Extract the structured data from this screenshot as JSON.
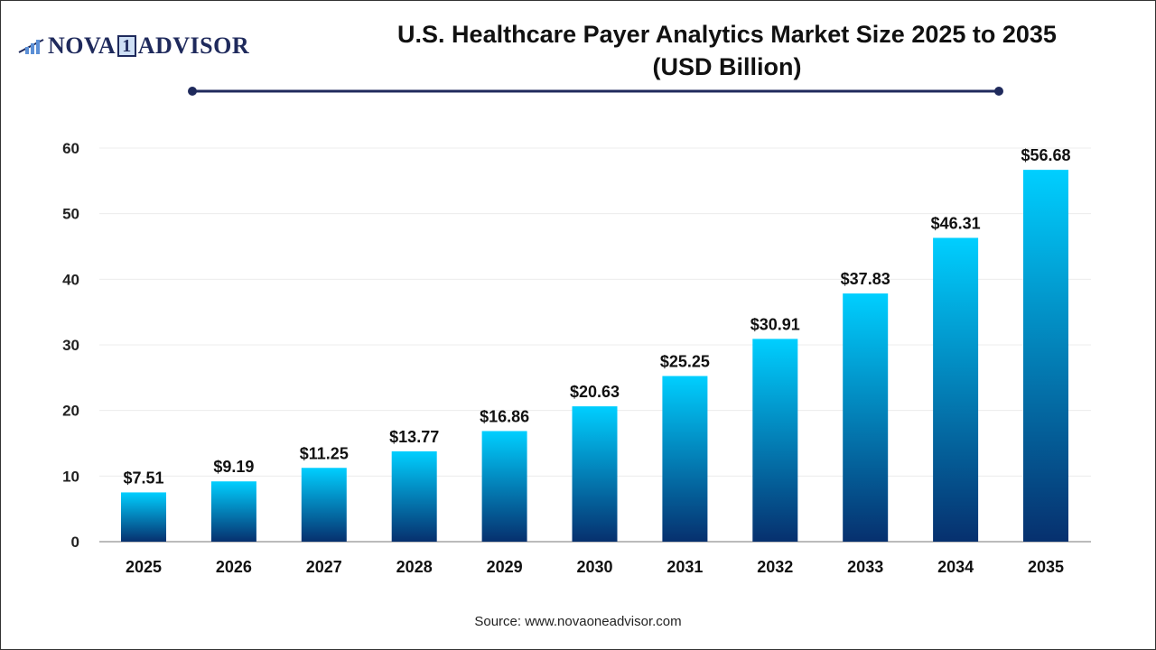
{
  "logo": {
    "text_left": "NOVA",
    "text_one": "1",
    "text_right": "ADVISOR"
  },
  "title_line1": "U.S. Healthcare Payer Analytics Market Size 2025 to 2035",
  "title_line2": "(USD Billion)",
  "source": "Source: www.novaoneadvisor.com",
  "colors": {
    "bar_top": "#00cfff",
    "bar_bottom": "#06306e",
    "title_rule": "#1f2a5c"
  },
  "chart_data": {
    "type": "bar",
    "title": "U.S. Healthcare Payer Analytics Market Size 2025 to 2035 (USD Billion)",
    "categories": [
      "2025",
      "2026",
      "2027",
      "2028",
      "2029",
      "2030",
      "2031",
      "2032",
      "2033",
      "2034",
      "2035"
    ],
    "values": [
      7.51,
      9.19,
      11.25,
      13.77,
      16.86,
      20.63,
      25.25,
      30.91,
      37.83,
      46.31,
      56.68
    ],
    "data_labels": [
      "$7.51",
      "$9.19",
      "$11.25",
      "$13.77",
      "$16.86",
      "$20.63",
      "$25.25",
      "$30.91",
      "$37.83",
      "$46.31",
      "$56.68"
    ],
    "xlabel": "",
    "ylabel": "",
    "ylim": [
      0,
      60
    ],
    "yticks": [
      0,
      10,
      20,
      30,
      40,
      50,
      60
    ],
    "grid": true,
    "legend": "none"
  }
}
